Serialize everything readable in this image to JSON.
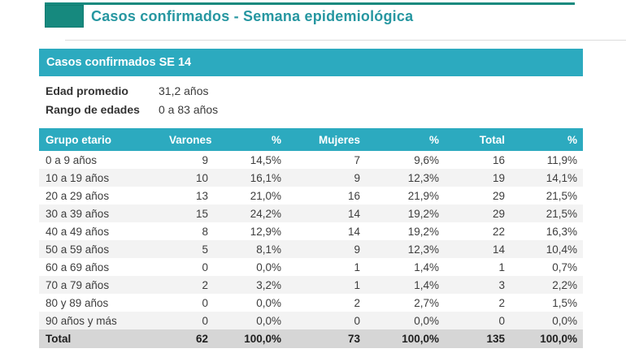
{
  "header": {
    "title": "Casos confirmados - Semana epidemiológica"
  },
  "banner": {
    "label": "Casos confirmados SE 14"
  },
  "summary": {
    "rows": [
      {
        "label": "Edad promedio",
        "value": "31,2 años"
      },
      {
        "label": "Rango de edades",
        "value": "0 a 83 años"
      }
    ]
  },
  "table": {
    "columns": [
      "Grupo etario",
      "Varones",
      "%",
      "Mujeres",
      "%",
      "Total",
      "%"
    ],
    "rows": [
      [
        "0 a 9 años",
        "9",
        "14,5%",
        "7",
        "9,6%",
        "16",
        "11,9%"
      ],
      [
        "10 a 19 años",
        "10",
        "16,1%",
        "9",
        "12,3%",
        "19",
        "14,1%"
      ],
      [
        "20 a 29 años",
        "13",
        "21,0%",
        "16",
        "21,9%",
        "29",
        "21,5%"
      ],
      [
        "30 a 39 años",
        "15",
        "24,2%",
        "14",
        "19,2%",
        "29",
        "21,5%"
      ],
      [
        "40 a 49 años",
        "8",
        "12,9%",
        "14",
        "19,2%",
        "22",
        "16,3%"
      ],
      [
        "50 a 59 años",
        "5",
        "8,1%",
        "9",
        "12,3%",
        "14",
        "10,4%"
      ],
      [
        "60 a 69 años",
        "0",
        "0,0%",
        "1",
        "1,4%",
        "1",
        "0,7%"
      ],
      [
        "70 a 79 años",
        "2",
        "3,2%",
        "1",
        "1,4%",
        "3",
        "2,2%"
      ],
      [
        "80 y 89 años",
        "0",
        "0,0%",
        "2",
        "2,7%",
        "2",
        "1,5%"
      ],
      [
        "90 años y más",
        "0",
        "0,0%",
        "0",
        "0,0%",
        "0",
        "0,0%"
      ]
    ],
    "total_row": [
      "Total",
      "62",
      "100,0%",
      "73",
      "100,0%",
      "135",
      "100,0%"
    ]
  },
  "colors": {
    "dark_teal_accent": "#16897e",
    "title_text": "#2797a1",
    "banner_teal": "#2caabf",
    "zebra_row": "#f3f3f3",
    "total_row_bg": "#d6d6d6",
    "body_text": "#3d3d3d"
  }
}
